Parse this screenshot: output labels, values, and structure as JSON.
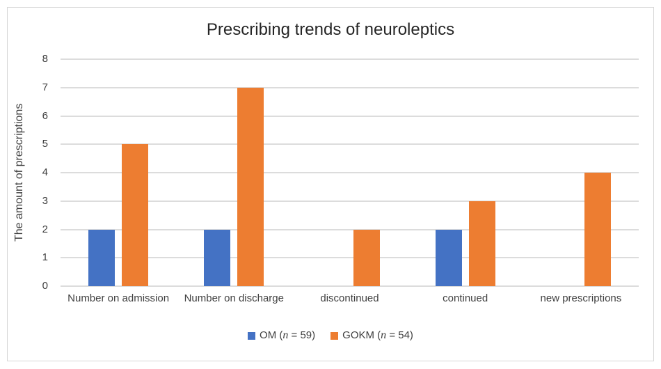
{
  "chart": {
    "title": "Prescribing trends of neuroleptics",
    "ylabel": "The amount of prescriptions"
  },
  "chart_data": {
    "type": "bar",
    "title": "Prescribing trends of neuroleptics",
    "xlabel": "",
    "ylabel": "The amount of prescriptions",
    "categories": [
      "Number on admission",
      "Number on discharge",
      "discontinued",
      "continued",
      "new prescriptions"
    ],
    "series": [
      {
        "name": "OM (n = 59)",
        "color": "#4472C4",
        "values": [
          2,
          2,
          0,
          2,
          0
        ]
      },
      {
        "name": "GOKM (n = 54)",
        "color": "#ED7D31",
        "values": [
          5,
          7,
          2,
          3,
          4
        ]
      }
    ],
    "ylim": [
      0,
      8
    ],
    "yticks": [
      0,
      1,
      2,
      3,
      4,
      5,
      6,
      7,
      8
    ],
    "grid": "horizontal",
    "legend_position": "bottom"
  },
  "legend": {
    "items": [
      {
        "pre": "OM (",
        "var": "n",
        "post": " = 59)",
        "color": "#4472C4"
      },
      {
        "pre": "GOKM (",
        "var": "n",
        "post": " = 54)",
        "color": "#ED7D31"
      }
    ]
  },
  "colors": {
    "om_blue": "#4472C4",
    "gokm_orange": "#ED7D31",
    "gridline": "#DCDCDC",
    "frame_border": "#D6D6D6",
    "text": "#3F3F3F",
    "title_text": "#262626"
  }
}
